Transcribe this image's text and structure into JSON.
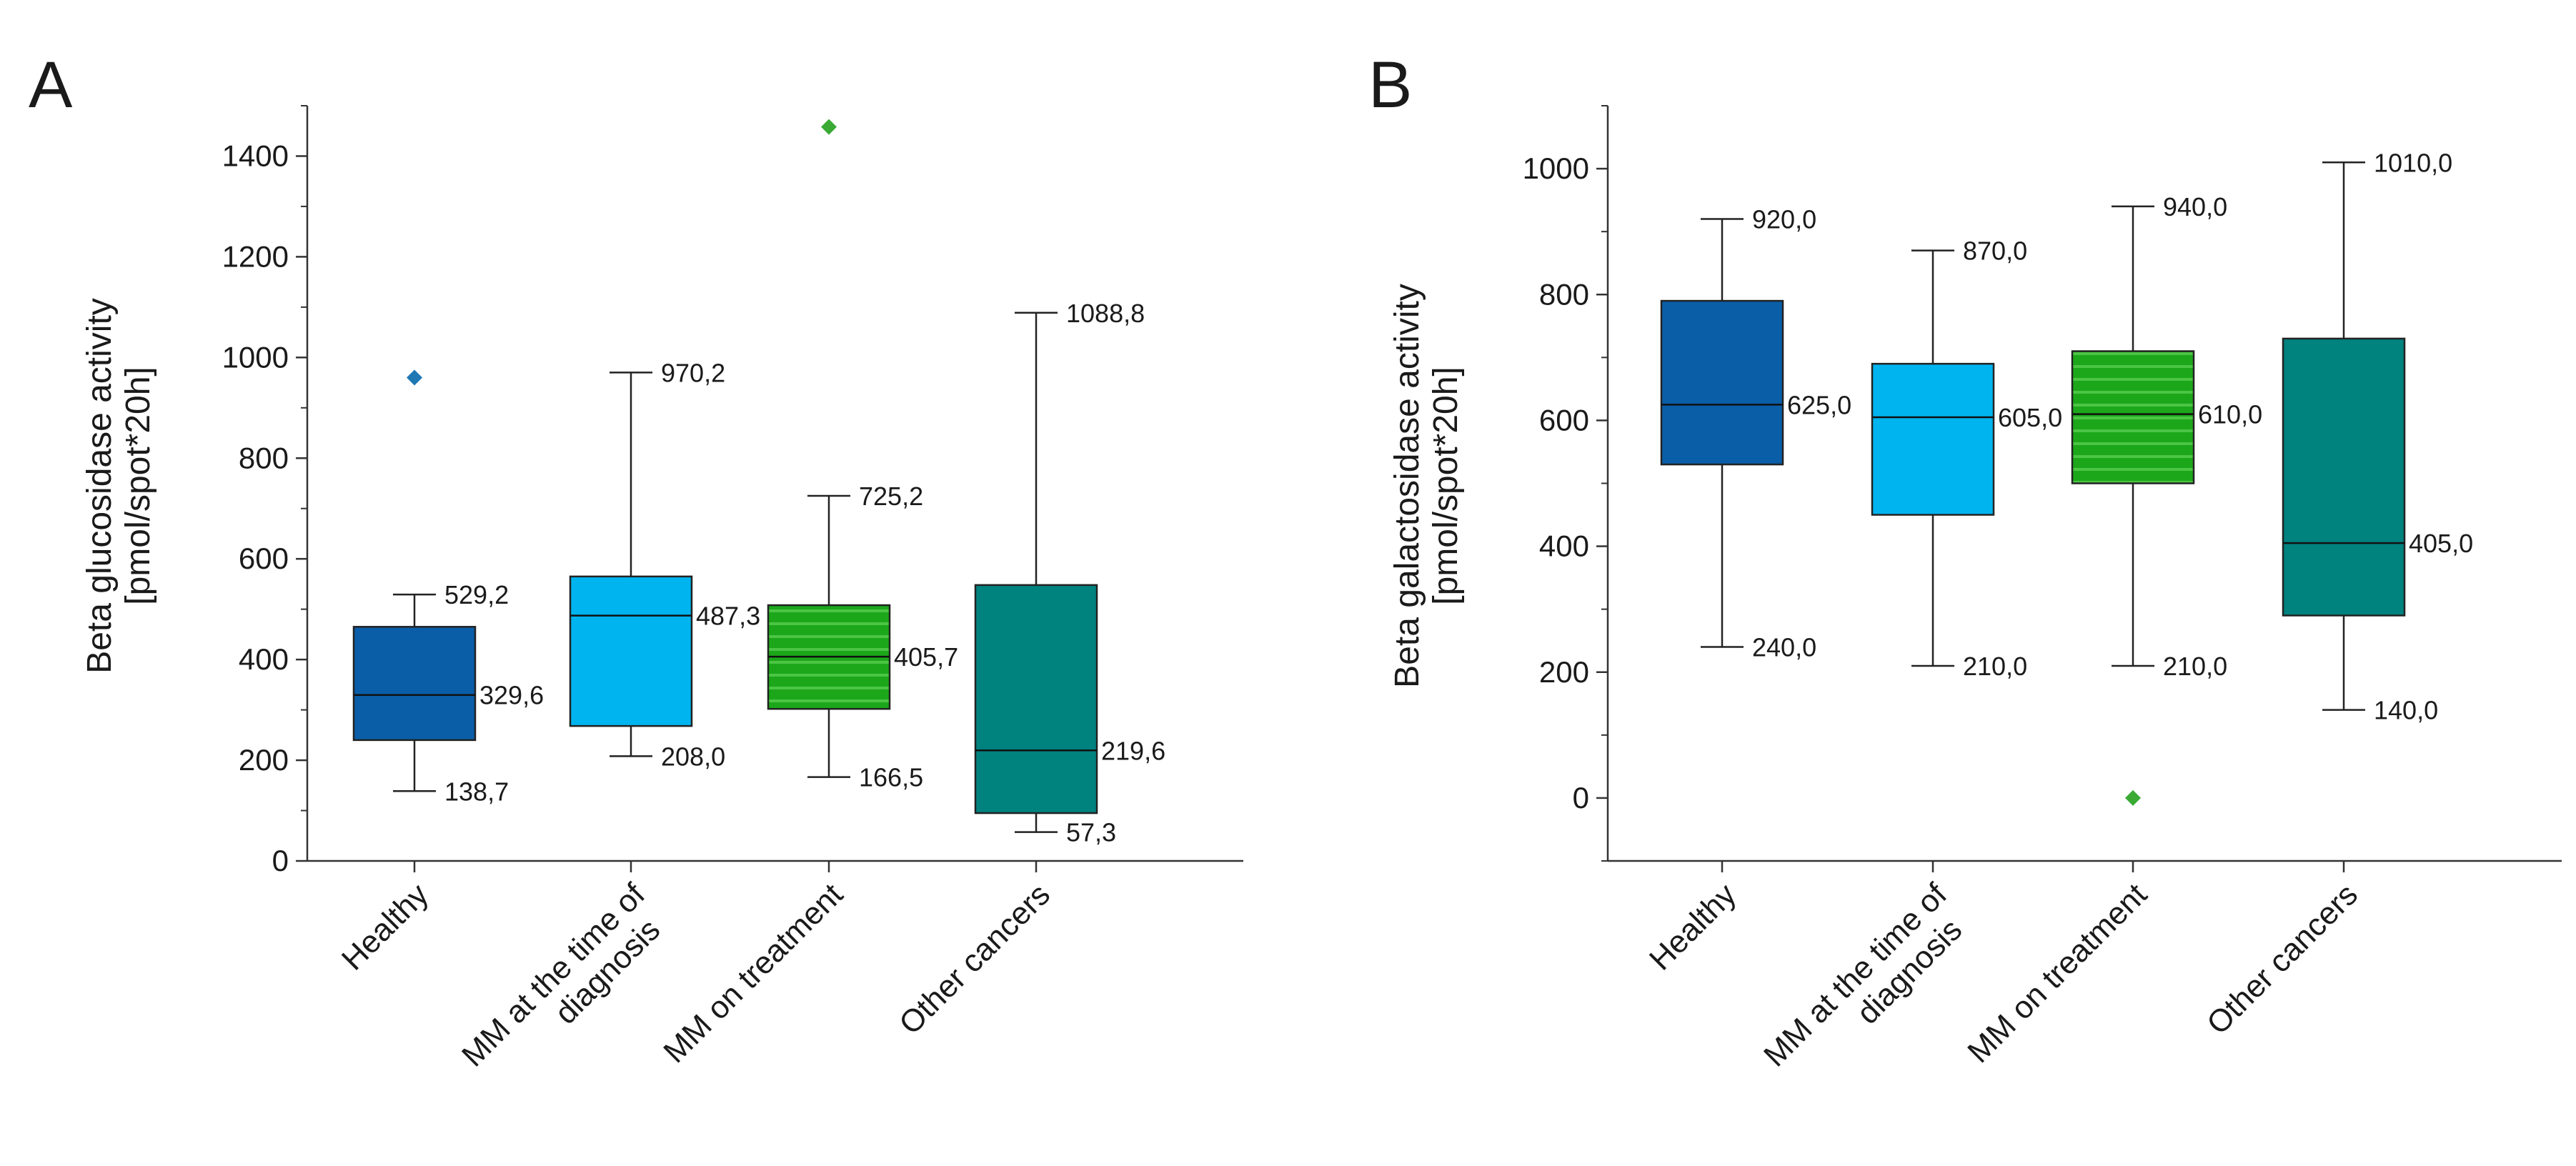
{
  "chart_data": [
    {
      "panel_label": "A",
      "type": "box",
      "ylabel": [
        "Beta glucosidase activity",
        "[pmol/spot*20h]"
      ],
      "xlabel": "",
      "ylim": [
        0,
        1500
      ],
      "yticks": [
        0,
        200,
        400,
        600,
        800,
        1000,
        1200,
        1400
      ],
      "yticks_minor": true,
      "grid": false,
      "legend": "none",
      "categories": [
        [
          "Healthy"
        ],
        [
          "MM at the time of",
          "diagnosis"
        ],
        [
          "MM on treatment"
        ],
        [
          "Other cancers"
        ]
      ],
      "boxes": [
        {
          "whisker_low": 138.7,
          "q1": 240,
          "median": 329.6,
          "q3": 465,
          "whisker_high": 529.2,
          "labels": {
            "whisker_high": "529,2",
            "median": "329,6",
            "whisker_low": "138,7"
          },
          "outliers": [
            960
          ],
          "color": "#0a5ea8",
          "outlier_color": "#1f78b4",
          "hatched": false
        },
        {
          "whisker_low": 208.0,
          "q1": 268,
          "median": 487.3,
          "q3": 565,
          "whisker_high": 970.2,
          "labels": {
            "whisker_high": "970,2",
            "median": "487,3",
            "whisker_low": "208,0"
          },
          "outliers": [],
          "color": "#00b4f0",
          "outlier_color": "",
          "hatched": false
        },
        {
          "whisker_low": 166.5,
          "q1": 302,
          "median": 405.7,
          "q3": 508,
          "whisker_high": 725.2,
          "labels": {
            "whisker_high": "725,2",
            "median": "405,7",
            "whisker_low": "166,5"
          },
          "outliers": [
            1458
          ],
          "color": "#1ca71a",
          "outlier_color": "#3aaa35",
          "hatched": true
        },
        {
          "whisker_low": 57.3,
          "q1": 95,
          "median": 219.6,
          "q3": 548,
          "whisker_high": 1088.8,
          "labels": {
            "whisker_high": "1088,8",
            "median": "219,6",
            "whisker_low": "57,3"
          },
          "outliers": [],
          "color": "#00827f",
          "outlier_color": "",
          "hatched": false
        }
      ]
    },
    {
      "panel_label": "B",
      "type": "box",
      "ylabel": [
        "Beta galactosidase activity",
        "[pmol/spot*20h]"
      ],
      "xlabel": "",
      "ylim": [
        -100,
        1100
      ],
      "yticks": [
        0,
        200,
        400,
        600,
        800,
        1000
      ],
      "yticks_minor": true,
      "grid": false,
      "legend": "none",
      "categories": [
        [
          "Healthy"
        ],
        [
          "MM at the time of",
          "diagnosis"
        ],
        [
          "MM on treatment"
        ],
        [
          "Other cancers"
        ]
      ],
      "boxes": [
        {
          "whisker_low": 240.0,
          "q1": 530,
          "median": 625.0,
          "q3": 790,
          "whisker_high": 920.0,
          "labels": {
            "whisker_high": "920,0",
            "median": "625,0",
            "whisker_low": "240,0"
          },
          "outliers": [],
          "color": "#0a5ea8",
          "outlier_color": "",
          "hatched": false
        },
        {
          "whisker_low": 210.0,
          "q1": 450,
          "median": 605.0,
          "q3": 690,
          "whisker_high": 870.0,
          "labels": {
            "whisker_high": "870,0",
            "median": "605,0",
            "whisker_low": "210,0"
          },
          "outliers": [],
          "color": "#00b4f0",
          "outlier_color": "",
          "hatched": false
        },
        {
          "whisker_low": 210.0,
          "q1": 500,
          "median": 610.0,
          "q3": 710,
          "whisker_high": 940.0,
          "labels": {
            "whisker_high": "940,0",
            "median": "610,0",
            "whisker_low": "210,0"
          },
          "outliers": [
            0
          ],
          "color": "#1ca71a",
          "outlier_color": "#3aaa35",
          "hatched": true
        },
        {
          "whisker_low": 140.0,
          "q1": 290,
          "median": 405.0,
          "q3": 730,
          "whisker_high": 1010.0,
          "labels": {
            "whisker_high": "1010,0",
            "median": "405,0",
            "whisker_low": "140,0"
          },
          "outliers": [],
          "color": "#00827f",
          "outlier_color": "",
          "hatched": false
        }
      ]
    }
  ]
}
